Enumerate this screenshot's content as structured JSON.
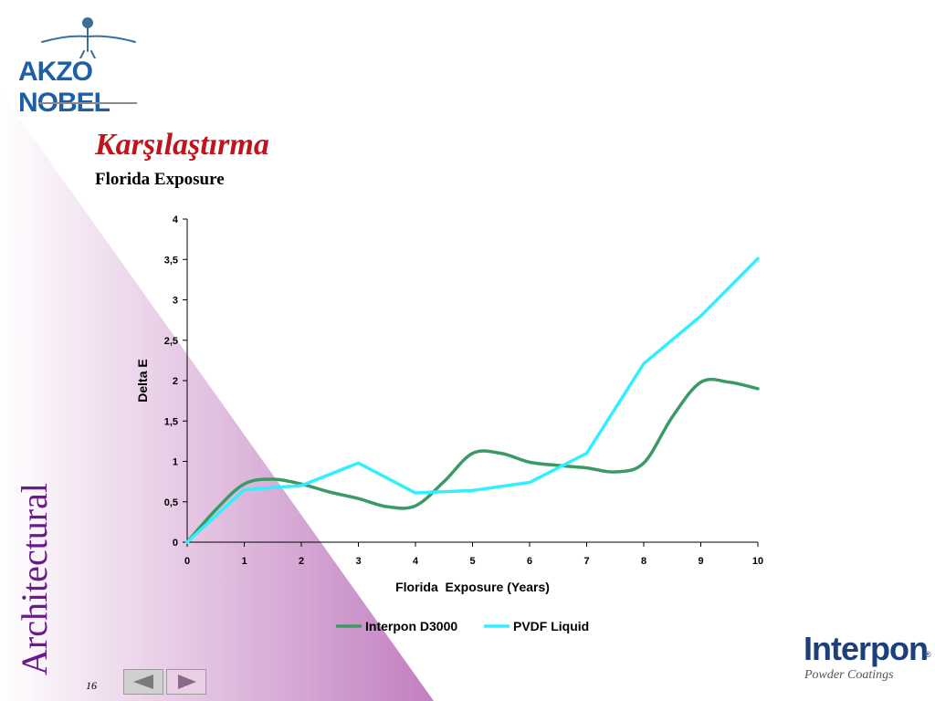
{
  "logo": {
    "company": "AKZO NOBEL",
    "product": "Interpon",
    "product_tagline": "Powder Coatings"
  },
  "slide": {
    "title": "Karşılaştırma",
    "subtitle": "Florida Exposure",
    "side_label": "Architectural",
    "page_number": "16"
  },
  "colors": {
    "title": "#c0141c",
    "series_green": "#3a9a66",
    "series_cyan": "#33eeff",
    "triangle": "#c27fc0",
    "brand_blue": "#1d5fa6"
  },
  "icons": {
    "prev": "triangle-left-icon",
    "next": "triangle-right-icon"
  },
  "chart_data": {
    "type": "line",
    "xlabel": "Florida  Exposure (Years)",
    "ylabel": "Delta E",
    "xlim": [
      0,
      10
    ],
    "ylim": [
      0,
      4
    ],
    "x_ticks": [
      "0",
      "1",
      "2",
      "3",
      "4",
      "5",
      "6",
      "7",
      "8",
      "9",
      "10"
    ],
    "y_ticks": [
      "0",
      "0,5",
      "1",
      "1,5",
      "2",
      "2,5",
      "3",
      "3,5",
      "4"
    ],
    "grid": false,
    "legend_position": "bottom",
    "series": [
      {
        "name": "Interpon D3000",
        "color": "#3a9a66",
        "x": [
          0,
          0.5,
          1,
          1.5,
          2,
          2.5,
          3,
          3.5,
          4,
          4.5,
          5,
          5.5,
          6,
          6.5,
          7,
          7.5,
          8,
          8.5,
          9,
          9.5,
          10
        ],
        "y": [
          0,
          0.4,
          0.72,
          0.78,
          0.72,
          0.62,
          0.54,
          0.44,
          0.45,
          0.75,
          1.1,
          1.1,
          0.99,
          0.95,
          0.92,
          0.87,
          0.98,
          1.55,
          1.98,
          1.98,
          1.9
        ]
      },
      {
        "name": "PVDF Liquid",
        "color": "#33eeff",
        "x": [
          0,
          1,
          2,
          3,
          4,
          5,
          6,
          7,
          8,
          9,
          10
        ],
        "y": [
          0,
          0.65,
          0.7,
          0.98,
          0.61,
          0.64,
          0.74,
          1.1,
          2.21,
          2.8,
          3.51
        ]
      }
    ]
  }
}
